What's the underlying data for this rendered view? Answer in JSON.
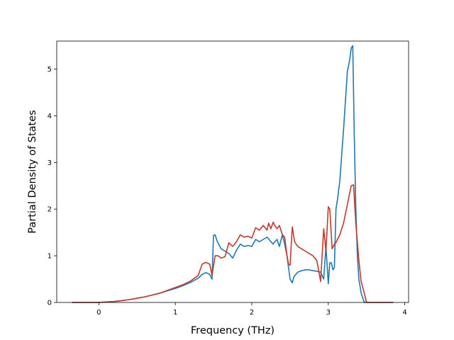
{
  "chart_data": {
    "type": "line",
    "title": "",
    "xlabel": "Frequency (THz)",
    "ylabel": "Partial Density of States",
    "xlim": [
      -0.55,
      4.05
    ],
    "ylim": [
      0,
      5.6
    ],
    "xticks": [
      0,
      1,
      2,
      3,
      4
    ],
    "yticks": [
      0,
      1,
      2,
      3,
      4,
      5
    ],
    "grid": false,
    "legend": "none",
    "series": [
      {
        "color": "#1f77b4",
        "x": [
          -0.35,
          -0.2,
          0.0,
          0.1,
          0.2,
          0.3,
          0.4,
          0.5,
          0.6,
          0.7,
          0.8,
          0.9,
          1.0,
          1.1,
          1.2,
          1.3,
          1.35,
          1.4,
          1.45,
          1.48,
          1.5,
          1.52,
          1.55,
          1.6,
          1.65,
          1.7,
          1.75,
          1.8,
          1.85,
          1.9,
          1.95,
          2.0,
          2.05,
          2.1,
          2.15,
          2.2,
          2.25,
          2.28,
          2.3,
          2.33,
          2.36,
          2.4,
          2.43,
          2.46,
          2.5,
          2.53,
          2.55,
          2.6,
          2.65,
          2.7,
          2.75,
          2.8,
          2.85,
          2.9,
          2.94,
          2.97,
          3.0,
          3.02,
          3.04,
          3.06,
          3.08,
          3.1,
          3.12,
          3.15,
          3.2,
          3.25,
          3.28,
          3.3,
          3.32,
          3.34,
          3.36,
          3.38,
          3.4,
          3.43,
          3.47,
          3.5,
          3.6,
          3.7,
          3.85
        ],
        "y": [
          0.0,
          0.0,
          0.0,
          0.01,
          0.02,
          0.04,
          0.06,
          0.09,
          0.12,
          0.16,
          0.2,
          0.25,
          0.3,
          0.36,
          0.43,
          0.52,
          0.6,
          0.64,
          0.6,
          0.5,
          1.44,
          1.45,
          1.3,
          1.15,
          1.1,
          1.05,
          0.95,
          1.12,
          1.25,
          1.2,
          1.22,
          1.2,
          1.35,
          1.3,
          1.35,
          1.4,
          1.3,
          1.25,
          1.3,
          1.35,
          1.2,
          1.45,
          1.25,
          1.0,
          0.5,
          0.42,
          0.55,
          0.65,
          0.68,
          0.7,
          0.7,
          0.68,
          0.67,
          0.65,
          0.5,
          1.2,
          0.4,
          0.85,
          0.85,
          0.7,
          0.75,
          2.0,
          2.2,
          2.6,
          3.7,
          4.95,
          5.2,
          5.45,
          5.5,
          3.6,
          2.0,
          1.0,
          0.5,
          0.2,
          0.0,
          0.0,
          0.0,
          0.0,
          0.0
        ]
      },
      {
        "color": "#c0392b",
        "x": [
          -0.35,
          -0.2,
          0.0,
          0.1,
          0.2,
          0.3,
          0.4,
          0.5,
          0.6,
          0.7,
          0.8,
          0.9,
          1.0,
          1.1,
          1.2,
          1.3,
          1.35,
          1.4,
          1.45,
          1.48,
          1.52,
          1.56,
          1.6,
          1.65,
          1.7,
          1.75,
          1.8,
          1.85,
          1.9,
          1.95,
          2.0,
          2.05,
          2.1,
          2.15,
          2.2,
          2.22,
          2.25,
          2.28,
          2.3,
          2.33,
          2.36,
          2.4,
          2.43,
          2.46,
          2.48,
          2.5,
          2.53,
          2.56,
          2.6,
          2.65,
          2.7,
          2.75,
          2.8,
          2.85,
          2.9,
          2.94,
          2.97,
          3.0,
          3.02,
          3.05,
          3.08,
          3.1,
          3.12,
          3.15,
          3.2,
          3.25,
          3.3,
          3.33,
          3.36,
          3.4,
          3.43,
          3.47,
          3.5,
          3.6,
          3.7,
          3.85
        ],
        "y": [
          0.0,
          0.0,
          0.0,
          0.01,
          0.02,
          0.04,
          0.06,
          0.09,
          0.12,
          0.16,
          0.2,
          0.26,
          0.32,
          0.38,
          0.46,
          0.58,
          0.82,
          0.86,
          0.82,
          0.58,
          1.0,
          1.0,
          0.95,
          0.98,
          1.28,
          1.2,
          1.3,
          1.45,
          1.4,
          1.42,
          1.38,
          1.6,
          1.55,
          1.65,
          1.55,
          1.7,
          1.58,
          1.72,
          1.65,
          1.58,
          1.65,
          1.45,
          1.4,
          1.0,
          0.82,
          0.8,
          1.62,
          1.3,
          1.2,
          1.15,
          1.1,
          1.05,
          1.0,
          0.9,
          0.45,
          1.58,
          1.1,
          2.05,
          2.0,
          1.15,
          1.25,
          1.28,
          1.35,
          1.45,
          1.7,
          2.1,
          2.5,
          2.52,
          1.7,
          0.9,
          0.45,
          0.2,
          0.0,
          0.0,
          0.0,
          0.0
        ]
      }
    ]
  }
}
